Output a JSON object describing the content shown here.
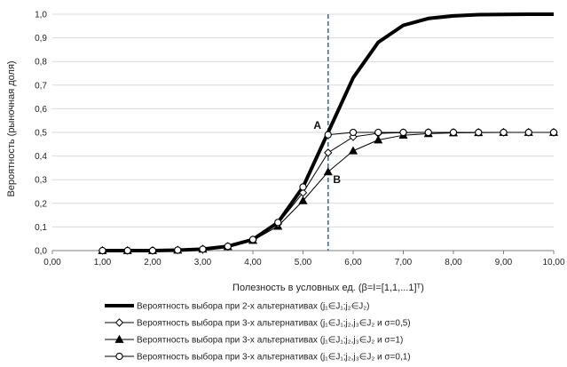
{
  "chart_data": {
    "type": "line",
    "title": "",
    "xlabel": "Полезность в условных ед. (β=I=[1,1,...1]ᵀ)",
    "ylabel": "Вероятность (рыночная доля)",
    "xlim": [
      0,
      10
    ],
    "ylim": [
      0,
      1
    ],
    "x_ticks": [
      "0,00",
      "1,00",
      "2,00",
      "3,00",
      "4,00",
      "5,00",
      "6,00",
      "7,00",
      "8,00",
      "9,00",
      "10,00"
    ],
    "y_ticks": [
      "0,0",
      "0,1",
      "0,2",
      "0,3",
      "0,4",
      "0,5",
      "0,6",
      "0,7",
      "0,8",
      "0,9",
      "1,0"
    ],
    "grid": "horizontal",
    "legend_position": "bottom",
    "vertical_reference_line": {
      "x": 5.5,
      "style": "dashed",
      "color": "#1f77b4"
    },
    "annotations": [
      {
        "text": "A",
        "x": 5.5,
        "y": 0.5
      },
      {
        "text": "B",
        "x": 5.5,
        "y": 0.33
      }
    ],
    "series": [
      {
        "name": "Вероятность выбора при 2-х альтернативах (j₁∈J₁;j₂∈J₂)",
        "marker": "none",
        "line_width": 4,
        "color": "#000000",
        "x": [
          1,
          1.5,
          2,
          2.5,
          3,
          3.5,
          4,
          4.5,
          5,
          5.5,
          6,
          6.5,
          7,
          7.5,
          8,
          8.5,
          9,
          9.5,
          10
        ],
        "y": [
          0,
          0,
          0,
          0.002,
          0.006,
          0.018,
          0.047,
          0.119,
          0.269,
          0.5,
          0.731,
          0.881,
          0.953,
          0.982,
          0.993,
          0.998,
          0.999,
          1.0,
          1.0
        ]
      },
      {
        "name": "Вероятность выбора при 3-х альтернативах (j₁∈J₁;j₂,j₃∈J₂ и σ=0,5)",
        "marker": "diamond-open",
        "line_width": 1,
        "color": "#000000",
        "x": [
          1,
          1.5,
          2,
          2.5,
          3,
          3.5,
          4,
          4.5,
          5,
          5.5,
          6,
          6.5,
          7,
          7.5,
          8,
          8.5,
          9,
          9.5,
          10
        ],
        "y": [
          0,
          0,
          0,
          0.002,
          0.006,
          0.017,
          0.045,
          0.113,
          0.245,
          0.414,
          0.481,
          0.496,
          0.499,
          0.5,
          0.5,
          0.5,
          0.5,
          0.5,
          0.5
        ]
      },
      {
        "name": "Вероятность выбора при 3-х альтернативах (j₁∈J₁;j₂,j₃∈J₂ и σ=1)",
        "marker": "triangle",
        "line_width": 1,
        "color": "#000000",
        "x": [
          1,
          1.5,
          2,
          2.5,
          3,
          3.5,
          4,
          4.5,
          5,
          5.5,
          6,
          6.5,
          7,
          7.5,
          8,
          8.5,
          9,
          9.5,
          10
        ],
        "y": [
          0,
          0,
          0,
          0.002,
          0.006,
          0.017,
          0.043,
          0.103,
          0.211,
          0.333,
          0.422,
          0.468,
          0.488,
          0.495,
          0.498,
          0.499,
          0.5,
          0.5,
          0.5
        ]
      },
      {
        "name": "Вероятность выбора при 3-х альтернативах (j₁∈J₁;j₂,j₃∈J₂ и σ=0,1)",
        "marker": "circle-open",
        "line_width": 1,
        "color": "#000000",
        "x": [
          1,
          1.5,
          2,
          2.5,
          3,
          3.5,
          4,
          4.5,
          5,
          5.5,
          6,
          6.5,
          7,
          7.5,
          8,
          8.5,
          9,
          9.5,
          10
        ],
        "y": [
          0,
          0,
          0,
          0.002,
          0.006,
          0.018,
          0.047,
          0.119,
          0.269,
          0.49,
          0.5,
          0.5,
          0.5,
          0.5,
          0.5,
          0.5,
          0.5,
          0.5,
          0.5
        ]
      }
    ]
  }
}
